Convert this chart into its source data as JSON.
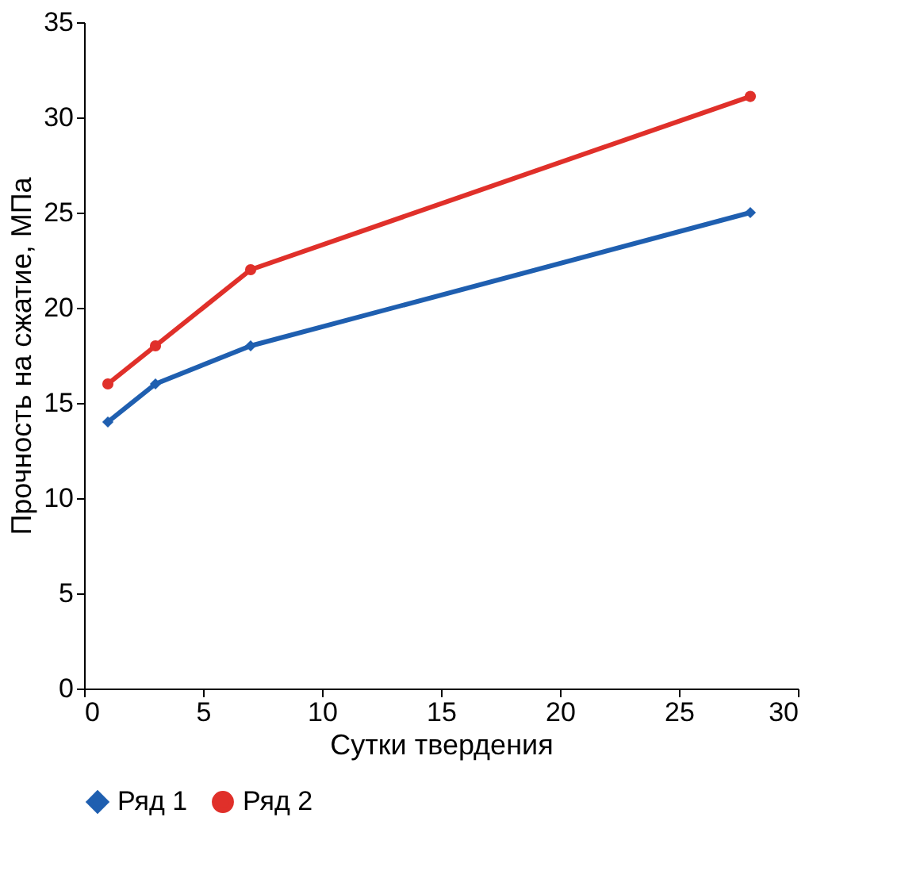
{
  "chart_data": {
    "type": "line",
    "xlabel": "Сутки твердения",
    "ylabel": "Прочность на сжатие, МПа",
    "x": [
      1,
      3,
      7,
      28
    ],
    "series": [
      {
        "name": "Ряд 1",
        "color": "#1f5fb0",
        "values": [
          14,
          16,
          18,
          25
        ],
        "marker": "diamond"
      },
      {
        "name": "Ряд 2",
        "color": "#e0302a",
        "values": [
          16,
          18,
          22,
          31.1
        ],
        "marker": "circle"
      }
    ],
    "xlim": [
      0,
      30
    ],
    "xticks": [
      0,
      5,
      10,
      15,
      20,
      25,
      30
    ],
    "ylim": [
      0,
      35
    ],
    "yticks": [
      0,
      5,
      10,
      15,
      20,
      25,
      30,
      35
    ],
    "grid": false,
    "legend": "bottom",
    "line_style": "solid"
  }
}
